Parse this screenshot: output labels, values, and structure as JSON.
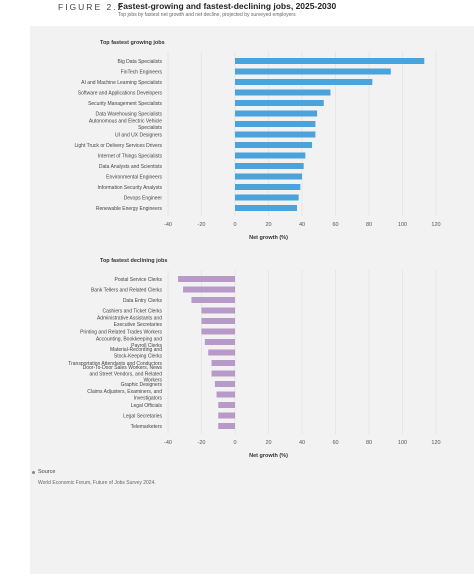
{
  "figure": {
    "number": "FIGURE 2.2",
    "title": "Fastest-growing and fastest-declining jobs, 2025-2030",
    "subtitle": "Top jobs by fastest net growth and net decline, projected by surveyed employers"
  },
  "source": {
    "label": "Source",
    "text": "World Economic Forum, Future of Jobs Survey 2024."
  },
  "colors": {
    "growing": "#4aa3db",
    "declining": "#b89ac8",
    "panel": "#f2f2f2",
    "grid": "#dddddd"
  },
  "chart_data": [
    {
      "type": "bar",
      "orientation": "horizontal",
      "title": "Top fastest growing jobs",
      "xlabel": "Net growth (%)",
      "xlim": [
        -40,
        120
      ],
      "xticks": [
        "-40",
        "-20",
        "0",
        "20",
        "40",
        "60",
        "80",
        "100",
        "120"
      ],
      "grid": true,
      "categories": [
        "Big Data Specialists",
        "FinTech Engineers",
        "AI and Machine Learning Specialists",
        "Software and Applications Developers",
        "Security Management Specialists",
        "Data Warehousing Specialists",
        "Autonomous and Electric Vehicle Specialists",
        "UI and UX Designers",
        "Light Truck or Delivery Services Drivers",
        "Internet of Things Specialists",
        "Data Analysts and Scientists",
        "Environmental Engineers",
        "Information Security Analysts",
        "Devops Engineer",
        "Renewable Energy Engineers"
      ],
      "values": [
        113,
        93,
        82,
        57,
        53,
        49,
        48,
        48,
        46,
        42,
        41,
        40,
        39,
        38,
        37
      ]
    },
    {
      "type": "bar",
      "orientation": "horizontal",
      "title": "Top fastest declining jobs",
      "xlabel": "Net growth (%)",
      "xlim": [
        -40,
        120
      ],
      "xticks": [
        "-40",
        "-20",
        "0",
        "20",
        "40",
        "60",
        "80",
        "100",
        "120"
      ],
      "grid": true,
      "categories": [
        "Postal Service Clerks",
        "Bank Tellers and Related Clerks",
        "Data Entry Clerks",
        "Cashiers and Ticket Clerks",
        "Administrative Assistants and Executive Secretaries",
        "Printing and Related Trades Workers",
        "Accounting, Bookkeeping and Payroll Clerks",
        "Material-Recording and Stock-Keeping Clerks",
        "Transportation Attendants and Conductors",
        "Door-To-Door Sales Workers, News and Street Vendors, and Related Workers",
        "Graphic Designers",
        "Claims Adjusters, Examiners, and Investigators",
        "Legal Officials",
        "Legal Secretaries",
        "Telemarketers"
      ],
      "values": [
        -34,
        -31,
        -26,
        -20,
        -20,
        -20,
        -18,
        -16,
        -14,
        -14,
        -12,
        -11,
        -10,
        -10,
        -10
      ]
    }
  ]
}
